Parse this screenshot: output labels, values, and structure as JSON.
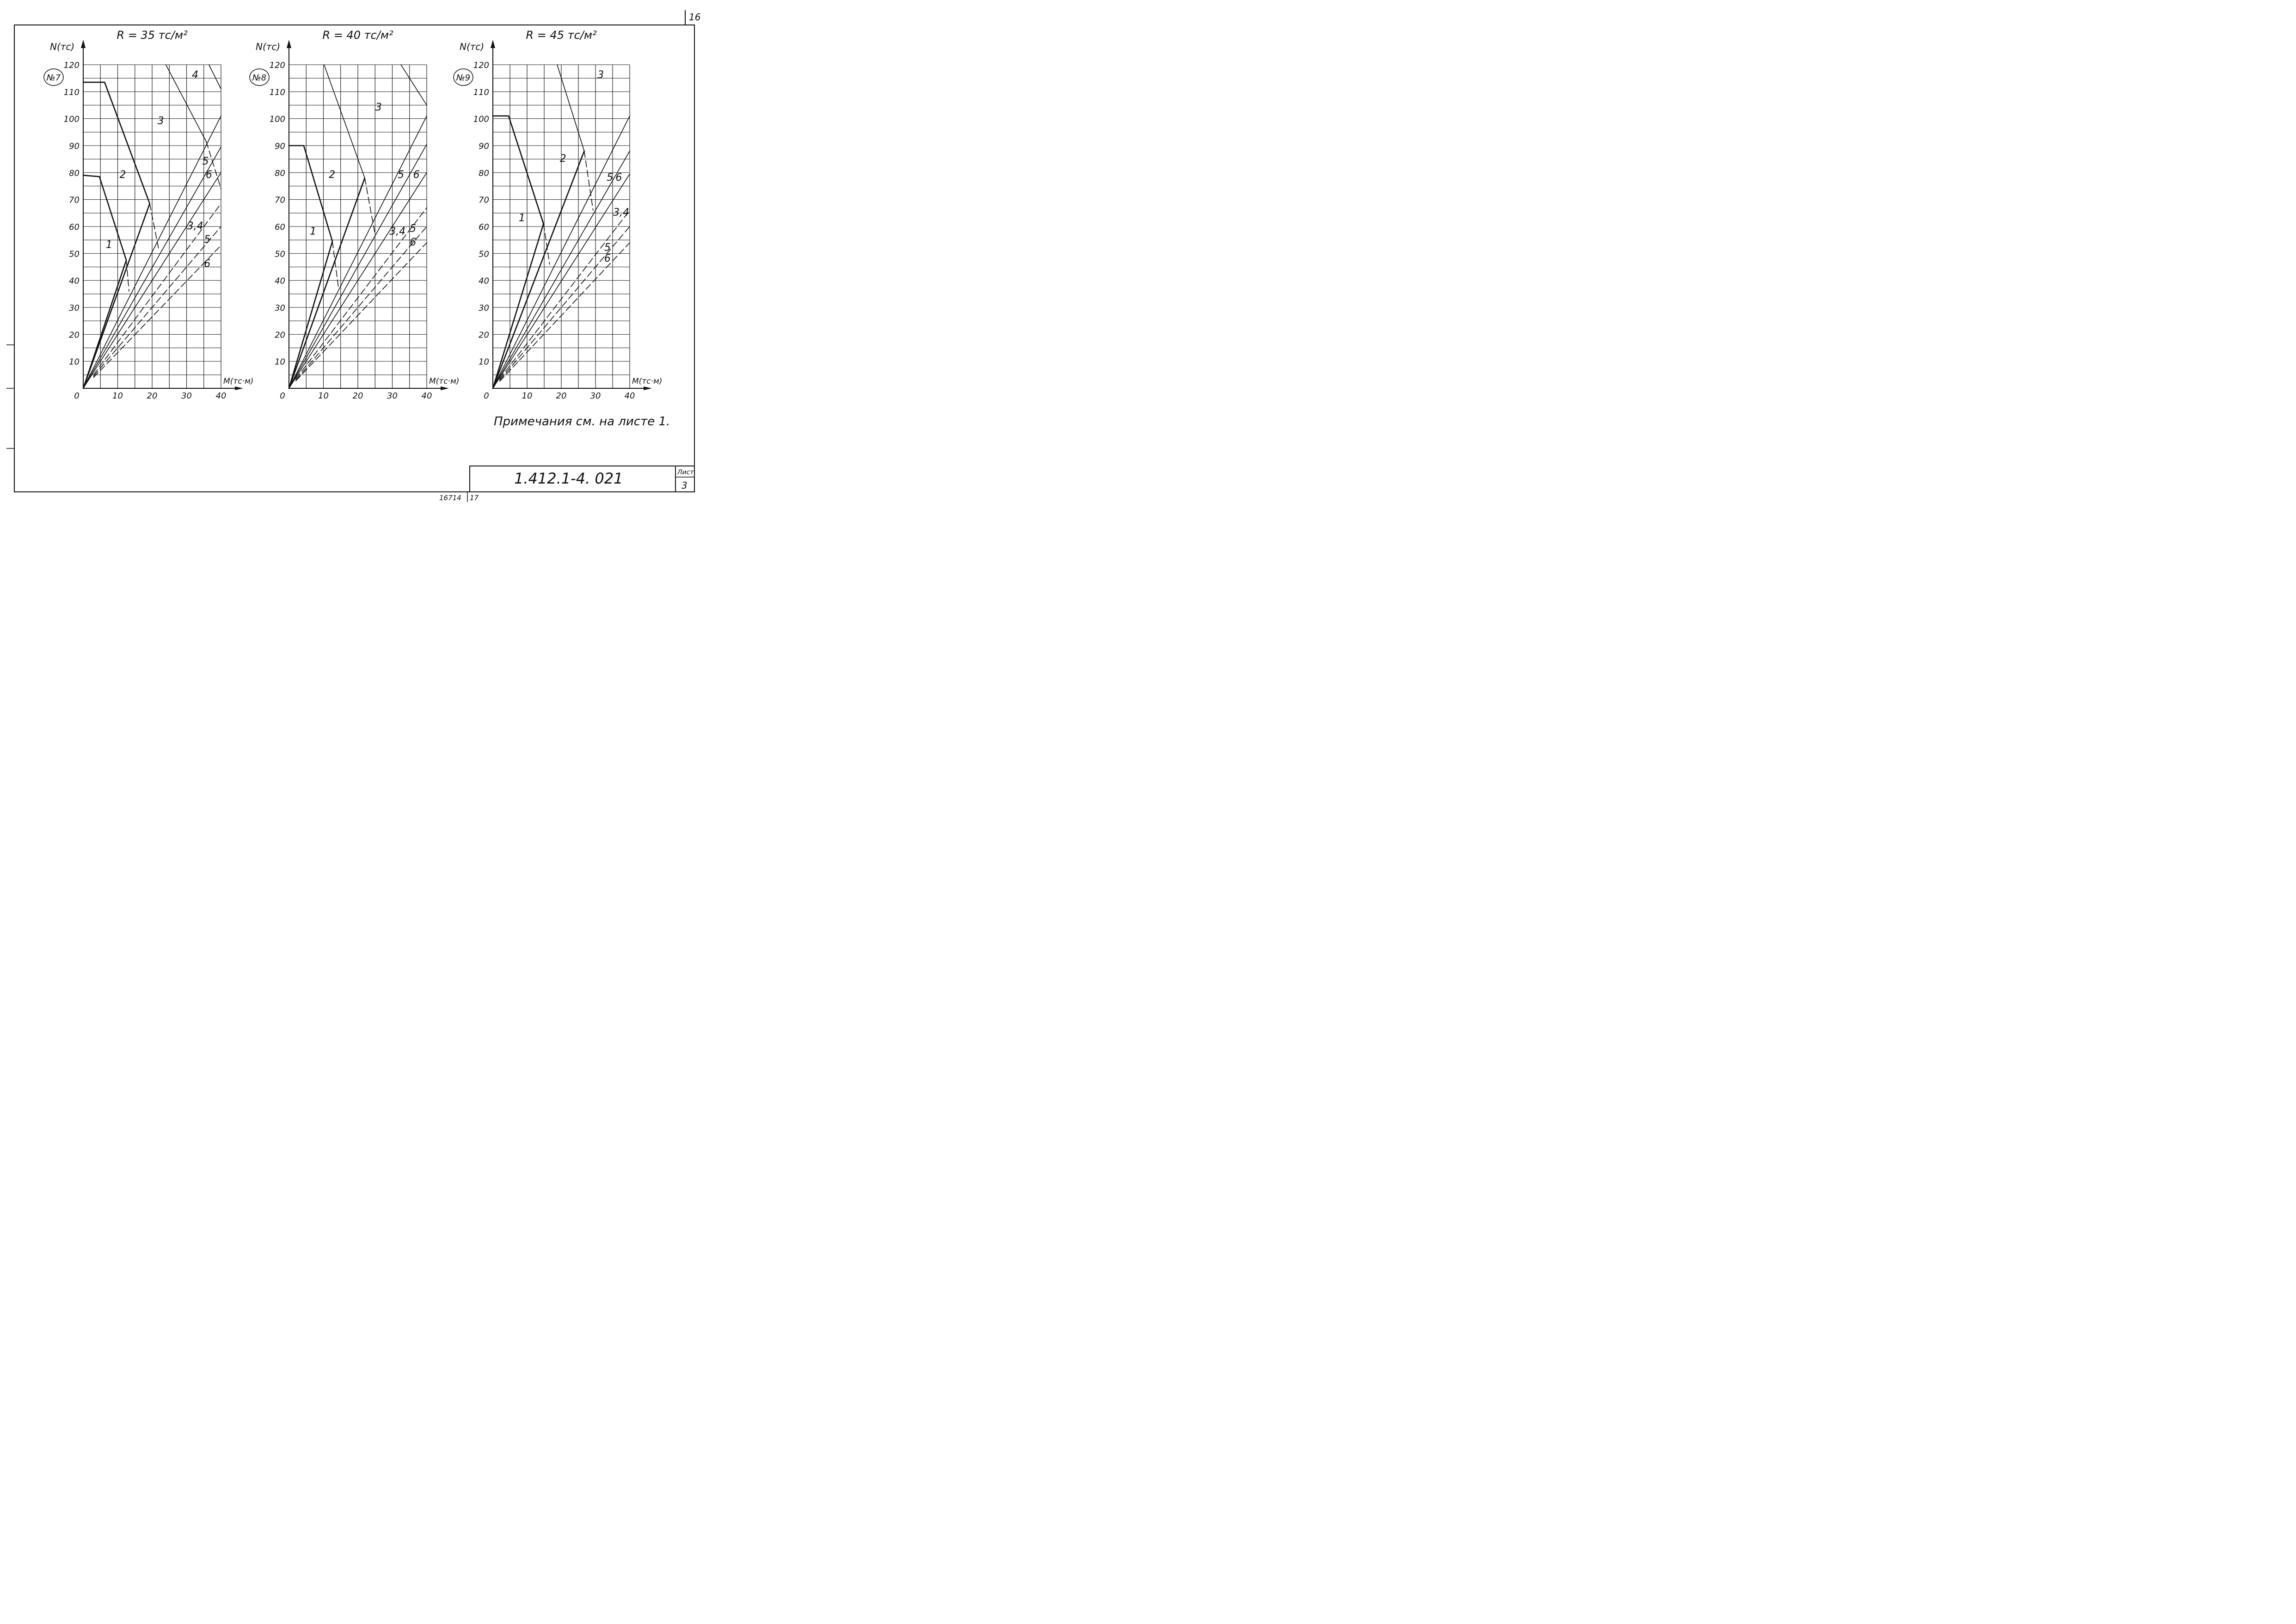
{
  "sheet": {
    "corner_number": "16",
    "notes": "Примечания см. на листе 1.",
    "doc_code": "1.412.1-4. 021",
    "sheet_label": "Лист",
    "sheet_number": "3",
    "footer_left": "16714",
    "footer_right": "17"
  },
  "colors": {
    "ink": "#111111",
    "paper": "#ffffff",
    "grid": "#222222"
  },
  "chart_data": [
    {
      "type": "line",
      "title": "R = 35 тс/м²",
      "panel_label": "№7",
      "ylabel": "N(тс)",
      "xlabel": "M(тс·м)",
      "xlim": [
        0,
        40
      ],
      "ylim": [
        0,
        120
      ],
      "x_ticks": [
        "0",
        "10",
        "20",
        "30",
        "40"
      ],
      "y_ticks": [
        "10",
        "20",
        "30",
        "40",
        "50",
        "60",
        "70",
        "80",
        "90",
        "100",
        "110",
        "120"
      ],
      "region_labels": [
        {
          "text": "1",
          "x": 7.5,
          "y": 52
        },
        {
          "text": "2",
          "x": 11.5,
          "y": 78
        },
        {
          "text": "3",
          "x": 22.5,
          "y": 98
        },
        {
          "text": "4",
          "x": 32.5,
          "y": 115
        },
        {
          "text": "5",
          "x": 35.5,
          "y": 83
        },
        {
          "text": "6",
          "x": 36.5,
          "y": 78
        },
        {
          "text": "3,4",
          "x": 32.5,
          "y": 59
        },
        {
          "text": "5",
          "x": 36,
          "y": 54
        },
        {
          "text": "6",
          "x": 36,
          "y": 45
        }
      ],
      "series": [
        {
          "style": "thick",
          "values": [
            [
              0,
              79
            ],
            [
              4.7,
              78.5
            ],
            [
              12.5,
              47.5
            ]
          ]
        },
        {
          "style": "thick",
          "values": [
            [
              0,
              113.5
            ],
            [
              6.2,
              113.5
            ],
            [
              19.3,
              68.5
            ]
          ]
        },
        {
          "style": "solid",
          "values": [
            [
              24,
              120
            ],
            [
              35.7,
              91.5
            ]
          ]
        },
        {
          "style": "solid",
          "values": [
            [
              36.5,
              120
            ],
            [
              40,
              111
            ]
          ]
        },
        {
          "style": "dashed",
          "values": [
            [
              12.5,
              47.5
            ],
            [
              13.3,
              36
            ]
          ]
        },
        {
          "style": "dashed",
          "values": [
            [
              19.3,
              68.5
            ],
            [
              22,
              51
            ]
          ]
        },
        {
          "style": "dashed",
          "values": [
            [
              35.7,
              91.5
            ],
            [
              40,
              74
            ]
          ]
        },
        {
          "style": "thick",
          "values": [
            [
              0,
              0
            ],
            [
              12.5,
              47.5
            ]
          ]
        },
        {
          "style": "thick",
          "values": [
            [
              0,
              0
            ],
            [
              19.3,
              68.5
            ]
          ]
        },
        {
          "style": "solid",
          "values": [
            [
              0,
              0
            ],
            [
              40,
              101
            ]
          ]
        },
        {
          "style": "solid",
          "values": [
            [
              0,
              0
            ],
            [
              40,
              89.5
            ]
          ]
        },
        {
          "style": "solid",
          "values": [
            [
              0,
              0
            ],
            [
              40,
              80
            ]
          ]
        },
        {
          "style": "dashed",
          "values": [
            [
              3,
              5
            ],
            [
              40,
              68.5
            ]
          ]
        },
        {
          "style": "dashed",
          "values": [
            [
              3,
              4.5
            ],
            [
              40,
              60
            ]
          ]
        },
        {
          "style": "dashed",
          "values": [
            [
              3,
              4
            ],
            [
              40,
              53
            ]
          ]
        }
      ]
    },
    {
      "type": "line",
      "title": "R = 40 тс/м²",
      "panel_label": "№8",
      "ylabel": "N(тс)",
      "xlabel": "M(тс·м)",
      "xlim": [
        0,
        40
      ],
      "ylim": [
        0,
        120
      ],
      "x_ticks": [
        "0",
        "10",
        "20",
        "30",
        "40"
      ],
      "y_ticks": [
        "10",
        "20",
        "30",
        "40",
        "50",
        "60",
        "70",
        "80",
        "90",
        "100",
        "110",
        "120"
      ],
      "region_labels": [
        {
          "text": "1",
          "x": 7,
          "y": 57
        },
        {
          "text": "2",
          "x": 12.5,
          "y": 78
        },
        {
          "text": "3",
          "x": 26,
          "y": 103
        },
        {
          "text": "5",
          "x": 32.5,
          "y": 78
        },
        {
          "text": "6",
          "x": 37,
          "y": 78
        },
        {
          "text": "3,4",
          "x": 31.5,
          "y": 57
        },
        {
          "text": "5",
          "x": 36,
          "y": 58
        },
        {
          "text": "6",
          "x": 36,
          "y": 53
        }
      ],
      "series": [
        {
          "style": "thick",
          "values": [
            [
              0,
              90
            ],
            [
              4.3,
              90
            ],
            [
              12.6,
              54.5
            ]
          ]
        },
        {
          "style": "solid",
          "values": [
            [
              10.2,
              120
            ],
            [
              22,
              78
            ]
          ]
        },
        {
          "style": "solid",
          "values": [
            [
              32.5,
              120
            ],
            [
              40,
              105
            ]
          ]
        },
        {
          "style": "dashed",
          "values": [
            [
              12.6,
              54.5
            ],
            [
              14.4,
              37
            ]
          ]
        },
        {
          "style": "dashed",
          "values": [
            [
              22,
              78
            ],
            [
              25,
              57
            ]
          ]
        },
        {
          "style": "thick",
          "values": [
            [
              0,
              0
            ],
            [
              12.6,
              54.5
            ]
          ]
        },
        {
          "style": "thick",
          "values": [
            [
              0,
              0
            ],
            [
              22,
              78
            ]
          ]
        },
        {
          "style": "solid",
          "values": [
            [
              0,
              0
            ],
            [
              40,
              101
            ]
          ]
        },
        {
          "style": "solid",
          "values": [
            [
              0,
              0
            ],
            [
              40,
              90.5
            ]
          ]
        },
        {
          "style": "solid",
          "values": [
            [
              0,
              0
            ],
            [
              40,
              80
            ]
          ]
        },
        {
          "style": "dashed",
          "values": [
            [
              2,
              3.5
            ],
            [
              40,
              67
            ]
          ]
        },
        {
          "style": "dashed",
          "values": [
            [
              2,
              3
            ],
            [
              40,
              60
            ]
          ]
        },
        {
          "style": "dashed",
          "values": [
            [
              2,
              2.8
            ],
            [
              40,
              54
            ]
          ]
        }
      ]
    },
    {
      "type": "line",
      "title": "R = 45 тс/м²",
      "panel_label": "№9",
      "ylabel": "N(тс)",
      "xlabel": "M(тс·м)",
      "xlim": [
        0,
        40
      ],
      "ylim": [
        0,
        120
      ],
      "x_ticks": [
        "0",
        "10",
        "20",
        "30",
        "40"
      ],
      "y_ticks": [
        "10",
        "20",
        "30",
        "40",
        "50",
        "60",
        "70",
        "80",
        "90",
        "100",
        "110",
        "120"
      ],
      "region_labels": [
        {
          "text": "1",
          "x": 8.5,
          "y": 62
        },
        {
          "text": "2",
          "x": 20.5,
          "y": 84
        },
        {
          "text": "3",
          "x": 31.5,
          "y": 115
        },
        {
          "text": "5",
          "x": 34.2,
          "y": 77
        },
        {
          "text": "6",
          "x": 36.8,
          "y": 77
        },
        {
          "text": "3,4",
          "x": 37.5,
          "y": 64
        },
        {
          "text": "5",
          "x": 33.5,
          "y": 51
        },
        {
          "text": "6",
          "x": 33.5,
          "y": 47
        }
      ],
      "series": [
        {
          "style": "thick",
          "values": [
            [
              0,
              101
            ],
            [
              4.6,
              101
            ],
            [
              14.8,
              61
            ]
          ]
        },
        {
          "style": "solid",
          "values": [
            [
              18.8,
              120
            ],
            [
              26.7,
              88
            ]
          ]
        },
        {
          "style": "dashed",
          "values": [
            [
              14.8,
              61
            ],
            [
              16.6,
              46
            ]
          ]
        },
        {
          "style": "dashed",
          "values": [
            [
              26.7,
              88
            ],
            [
              29.3,
              66
            ]
          ]
        },
        {
          "style": "thick",
          "values": [
            [
              0,
              0
            ],
            [
              14.8,
              61
            ]
          ]
        },
        {
          "style": "thick",
          "values": [
            [
              0,
              0
            ],
            [
              26.7,
              88
            ]
          ]
        },
        {
          "style": "solid",
          "values": [
            [
              0,
              0
            ],
            [
              40,
              101
            ]
          ]
        },
        {
          "style": "solid",
          "values": [
            [
              0,
              0
            ],
            [
              40,
              88
            ]
          ]
        },
        {
          "style": "solid",
          "values": [
            [
              0,
              0
            ],
            [
              40,
              79.5
            ]
          ]
        },
        {
          "style": "dashed",
          "values": [
            [
              2,
              3.5
            ],
            [
              40,
              66
            ]
          ]
        },
        {
          "style": "dashed",
          "values": [
            [
              2,
              3
            ],
            [
              40,
              60
            ]
          ]
        },
        {
          "style": "dashed",
          "values": [
            [
              2,
              2.6
            ],
            [
              40,
              54
            ]
          ]
        }
      ]
    }
  ]
}
